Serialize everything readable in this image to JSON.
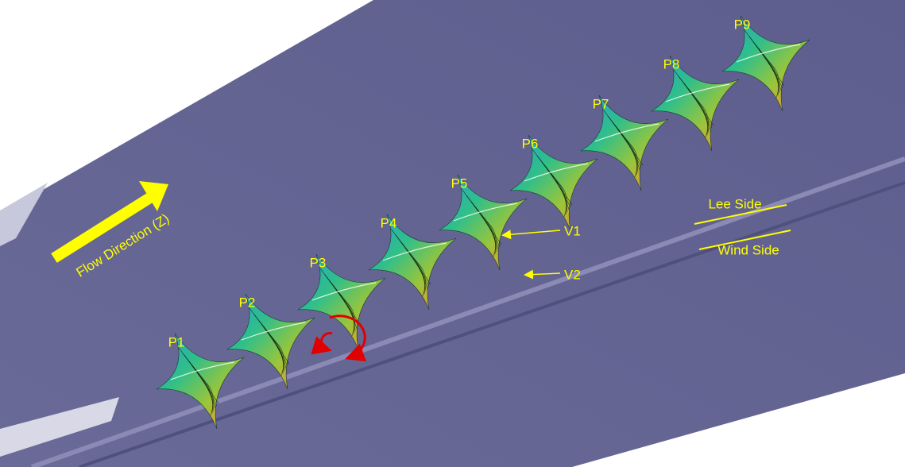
{
  "labels": {
    "planes": [
      "P1",
      "P2",
      "P3",
      "P4",
      "P5",
      "P6",
      "P7",
      "P8",
      "P9"
    ],
    "flow_direction": "Flow Direction (Z)",
    "lee_side": "Lee Side",
    "wind_side": "Wind Side",
    "vortices": [
      "V1",
      "V2"
    ]
  }
}
